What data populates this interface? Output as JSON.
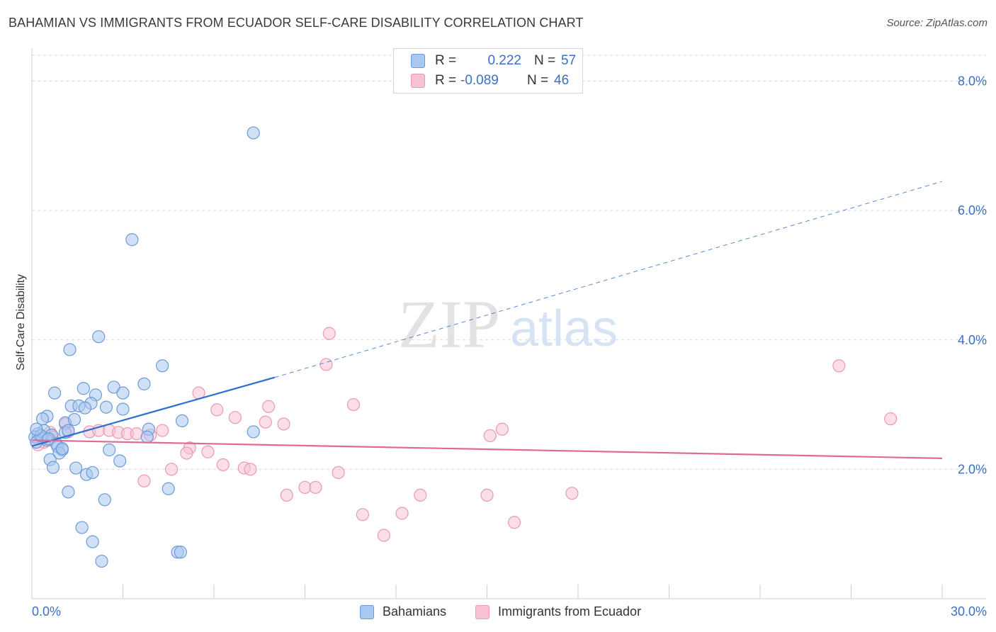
{
  "title": "BAHAMIAN VS IMMIGRANTS FROM ECUADOR SELF-CARE DISABILITY CORRELATION CHART",
  "source": "Source: ZipAtlas.com",
  "watermark": {
    "zip": "ZIP",
    "atlas": "atlas"
  },
  "legend": {
    "rows": [
      {
        "r_label": "R =",
        "r_value": "0.222",
        "n_label": "N =",
        "n_value": "57"
      },
      {
        "r_label": "R =",
        "r_value": "-0.089",
        "n_label": "N =",
        "n_value": "46"
      }
    ]
  },
  "bottom_legend": {
    "series1": "Bahamians",
    "series2": "Immigrants from Ecuador"
  },
  "colors": {
    "blue_fill": "#a9c8f0",
    "blue_stroke": "#6d9ad8",
    "blue_line": "#2e6fd0",
    "pink_fill": "#f7c3d3",
    "pink_stroke": "#ea9ab3",
    "pink_line": "#e06a95",
    "axis_text": "#3a6fc4",
    "grid": "#d9d9d9"
  },
  "chart_data": {
    "type": "scatter",
    "title": "BAHAMIAN VS IMMIGRANTS FROM ECUADOR SELF-CARE DISABILITY CORRELATION CHART",
    "xlabel": "",
    "ylabel": "Self-Care Disability",
    "xlim": [
      0,
      30
    ],
    "ylim": [
      0,
      8.4
    ],
    "x_tick_labels": [
      "0.0%",
      "30.0%"
    ],
    "y_ticks": [
      2,
      4,
      6,
      8
    ],
    "y_tick_labels": [
      "2.0%",
      "4.0%",
      "6.0%",
      "8.0%"
    ],
    "series": [
      {
        "name": "Bahamians",
        "R": 0.222,
        "N": 57,
        "trend": {
          "x1": 0.0,
          "y1": 2.36,
          "x2": 8.0,
          "y2": 3.42,
          "dash_to_x": 30.0,
          "dash_to_y": 6.45
        },
        "points": [
          [
            7.3,
            7.2
          ],
          [
            3.3,
            5.55
          ],
          [
            2.2,
            4.05
          ],
          [
            1.25,
            3.85
          ],
          [
            4.3,
            3.6
          ],
          [
            0.75,
            3.18
          ],
          [
            1.7,
            3.25
          ],
          [
            2.7,
            3.27
          ],
          [
            3.7,
            3.32
          ],
          [
            3.0,
            3.18
          ],
          [
            2.1,
            3.15
          ],
          [
            1.3,
            2.98
          ],
          [
            1.55,
            2.98
          ],
          [
            1.95,
            3.02
          ],
          [
            2.45,
            2.96
          ],
          [
            3.0,
            2.93
          ],
          [
            1.75,
            2.95
          ],
          [
            0.5,
            2.82
          ],
          [
            0.35,
            2.78
          ],
          [
            1.1,
            2.72
          ],
          [
            1.4,
            2.77
          ],
          [
            4.95,
            2.75
          ],
          [
            0.4,
            2.6
          ],
          [
            0.2,
            2.55
          ],
          [
            1.1,
            2.57
          ],
          [
            3.85,
            2.62
          ],
          [
            7.3,
            2.58
          ],
          [
            0.65,
            2.53
          ],
          [
            0.1,
            2.5
          ],
          [
            0.35,
            2.48
          ],
          [
            0.5,
            2.45
          ],
          [
            0.15,
            2.42
          ],
          [
            0.8,
            2.4
          ],
          [
            0.85,
            2.35
          ],
          [
            1.0,
            2.3
          ],
          [
            0.9,
            2.25
          ],
          [
            1.0,
            2.32
          ],
          [
            2.55,
            2.3
          ],
          [
            3.8,
            2.5
          ],
          [
            0.6,
            2.15
          ],
          [
            2.9,
            2.13
          ],
          [
            0.7,
            2.03
          ],
          [
            1.45,
            2.02
          ],
          [
            1.8,
            1.92
          ],
          [
            2.0,
            1.95
          ],
          [
            4.5,
            1.7
          ],
          [
            1.2,
            1.65
          ],
          [
            2.4,
            1.53
          ],
          [
            1.65,
            1.1
          ],
          [
            2.0,
            0.88
          ],
          [
            2.3,
            0.58
          ],
          [
            4.8,
            0.72
          ],
          [
            4.9,
            0.72
          ],
          [
            0.3,
            2.52
          ],
          [
            0.15,
            2.62
          ],
          [
            1.2,
            2.6
          ],
          [
            0.55,
            2.47
          ]
        ]
      },
      {
        "name": "Immigrants from Ecuador",
        "R": -0.089,
        "N": 46,
        "trend": {
          "x1": 0.0,
          "y1": 2.45,
          "x2": 30.0,
          "y2": 2.17
        },
        "points": [
          [
            9.8,
            4.1
          ],
          [
            9.7,
            3.62
          ],
          [
            26.6,
            3.6
          ],
          [
            5.5,
            3.18
          ],
          [
            10.6,
            3.0
          ],
          [
            7.8,
            2.97
          ],
          [
            6.1,
            2.92
          ],
          [
            28.3,
            2.78
          ],
          [
            6.7,
            2.8
          ],
          [
            7.7,
            2.73
          ],
          [
            8.3,
            2.7
          ],
          [
            1.1,
            2.7
          ],
          [
            1.2,
            2.58
          ],
          [
            1.9,
            2.58
          ],
          [
            2.2,
            2.6
          ],
          [
            2.55,
            2.6
          ],
          [
            2.85,
            2.57
          ],
          [
            3.15,
            2.55
          ],
          [
            3.45,
            2.55
          ],
          [
            3.9,
            2.53
          ],
          [
            4.3,
            2.6
          ],
          [
            0.6,
            2.57
          ],
          [
            0.7,
            2.5
          ],
          [
            0.4,
            2.42
          ],
          [
            0.2,
            2.38
          ],
          [
            15.5,
            2.62
          ],
          [
            15.1,
            2.52
          ],
          [
            5.2,
            2.33
          ],
          [
            5.1,
            2.25
          ],
          [
            5.8,
            2.27
          ],
          [
            6.3,
            2.07
          ],
          [
            7.0,
            2.02
          ],
          [
            7.2,
            2.0
          ],
          [
            4.6,
            2.0
          ],
          [
            10.1,
            1.95
          ],
          [
            3.7,
            1.82
          ],
          [
            9.0,
            1.72
          ],
          [
            9.35,
            1.72
          ],
          [
            8.4,
            1.6
          ],
          [
            12.8,
            1.6
          ],
          [
            15.0,
            1.6
          ],
          [
            17.8,
            1.63
          ],
          [
            10.9,
            1.3
          ],
          [
            12.2,
            1.32
          ],
          [
            15.9,
            1.18
          ],
          [
            11.6,
            0.98
          ]
        ]
      }
    ]
  }
}
